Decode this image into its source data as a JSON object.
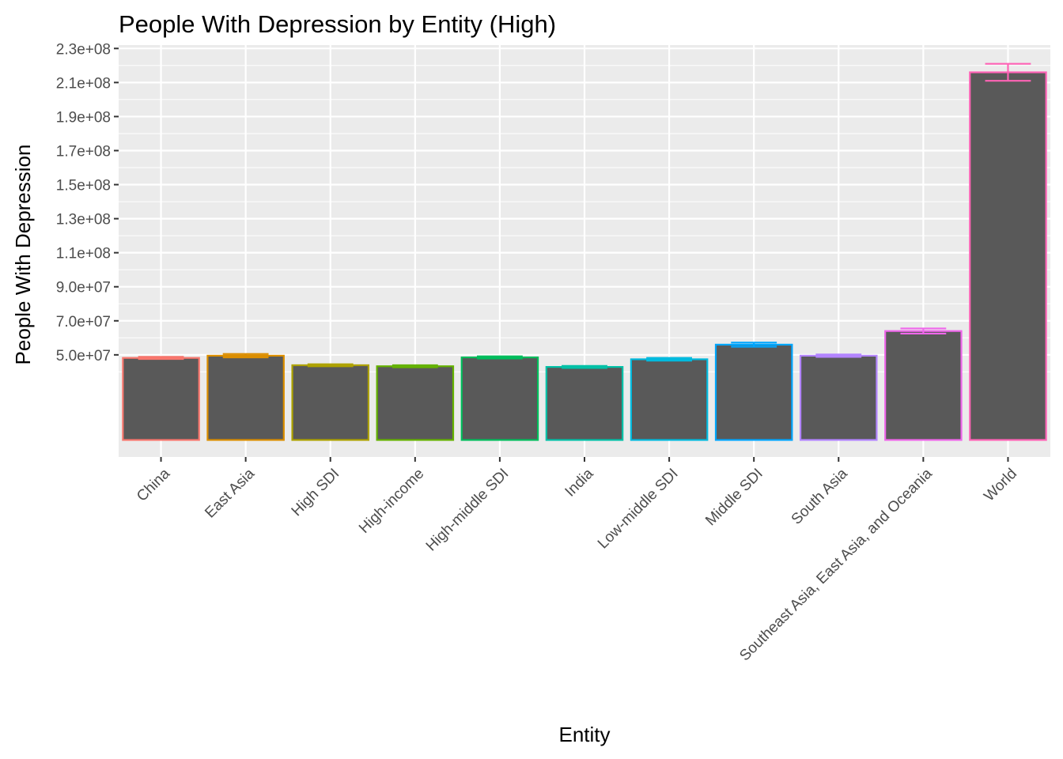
{
  "chart_data": {
    "type": "bar",
    "title": "People With Depression by Entity (High)",
    "xlabel": "Entity",
    "ylabel": "People With Depression",
    "categories": [
      "China",
      "East Asia",
      "High SDI",
      "High-income",
      "High-middle SDI",
      "India",
      "Low-middle SDI",
      "Middle SDI",
      "South Asia",
      "Southeast Asia, East Asia, and Oceania",
      "World"
    ],
    "values": [
      48200000,
      49500000,
      43900000,
      43300000,
      48500000,
      42900000,
      47400000,
      56000000,
      49500000,
      64000000,
      216000000
    ],
    "error_low": [
      47600000,
      48500000,
      43300000,
      42700000,
      47900000,
      42300000,
      46600000,
      54800000,
      48800000,
      62500000,
      211000000
    ],
    "error_high": [
      48800000,
      50500000,
      44500000,
      43900000,
      49100000,
      43500000,
      48200000,
      57200000,
      50200000,
      65500000,
      221000000
    ],
    "colors": [
      "#F8766D",
      "#DB8E00",
      "#AEA200",
      "#64B200",
      "#00BD5C",
      "#00C1A7",
      "#00BADE",
      "#00A6FF",
      "#B385FF",
      "#EF67EB",
      "#FF63B6"
    ],
    "bar_fill": "#595959",
    "panel_background": "#EBEBEB",
    "grid": true,
    "legend": "none",
    "yticks": [
      50000000,
      70000000,
      90000000,
      110000000,
      130000000,
      150000000,
      170000000,
      190000000,
      210000000,
      230000000
    ],
    "ytick_labels": [
      "5.0e+07",
      "7.0e+07",
      "9.0e+07",
      "1.1e+08",
      "1.3e+08",
      "1.5e+08",
      "1.7e+08",
      "1.9e+08",
      "2.1e+08",
      "2.3e+08"
    ],
    "ylim": [
      0,
      232000000
    ]
  }
}
